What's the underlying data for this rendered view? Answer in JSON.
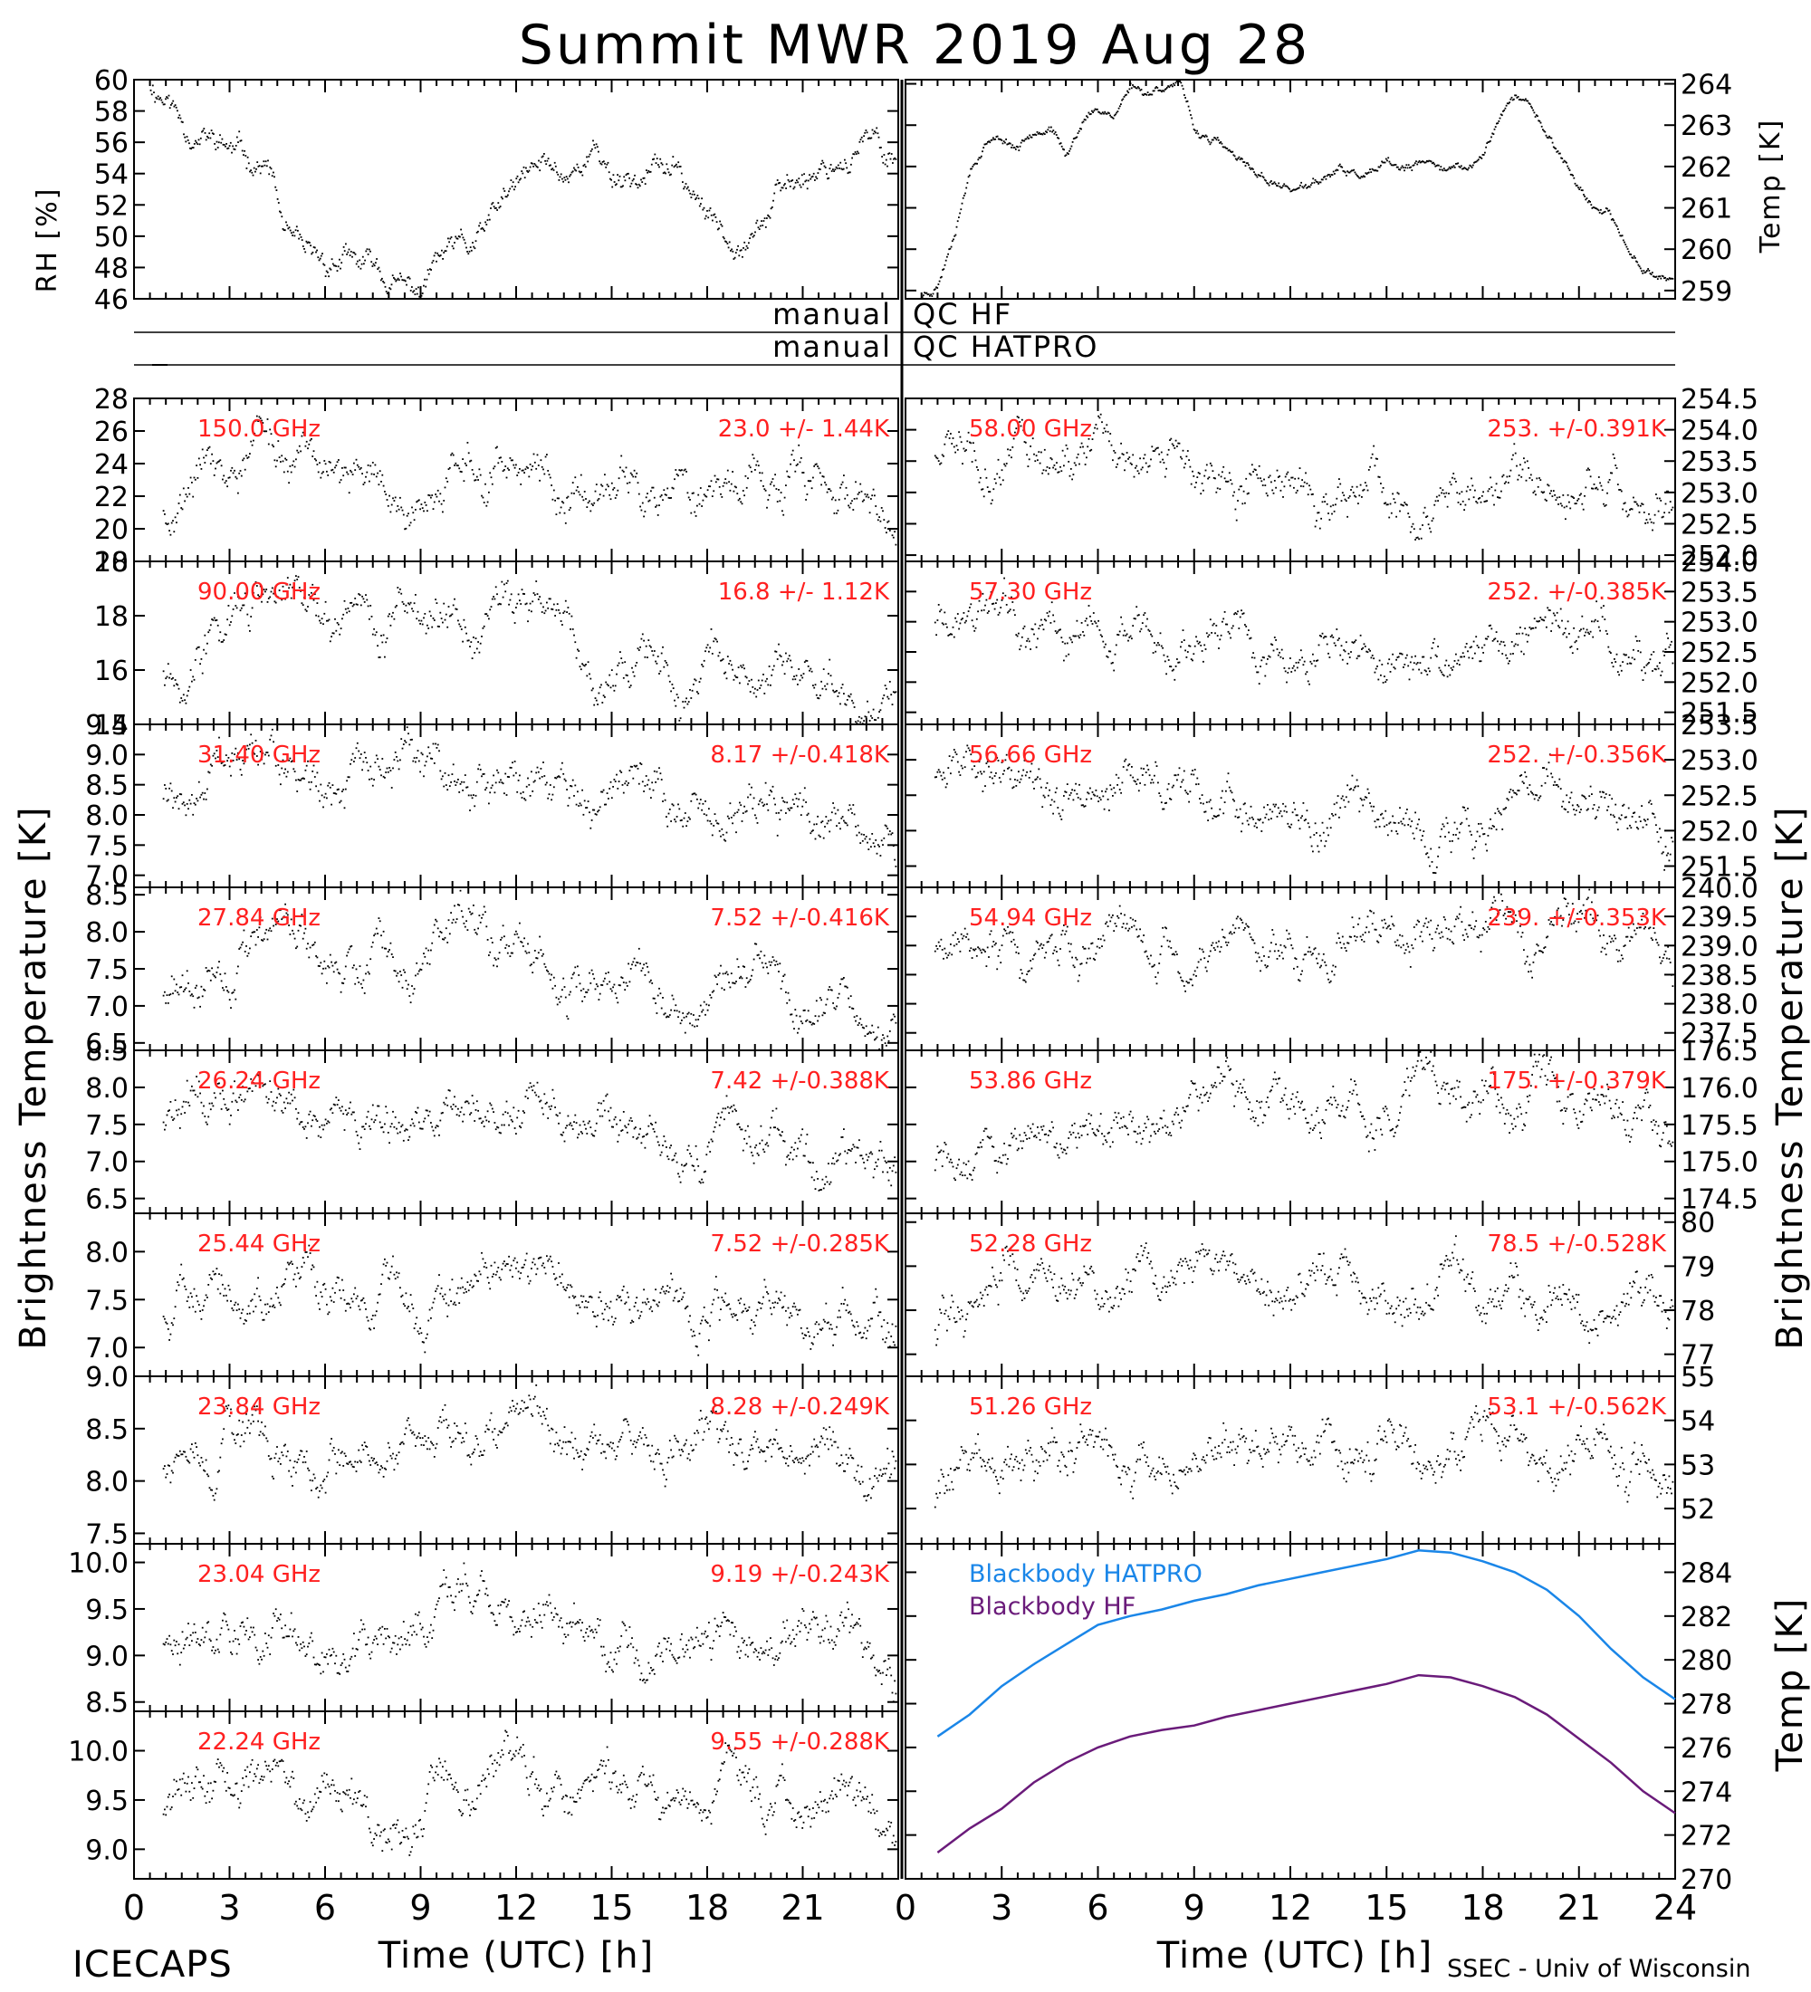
{
  "title": "Summit MWR 2019 Aug 28",
  "footer": {
    "left_label": "ICECAPS",
    "xlabel_left": "Time (UTC) [h]",
    "xlabel_right": "Time (UTC) [h]",
    "credit": "SSEC - Univ of Wisconsin"
  },
  "qc": {
    "line1_left": "manual",
    "line1_right": "QC HF",
    "line2_left": "manual",
    "line2_right": "QC HATPRO"
  },
  "axis_labels": {
    "rh": "RH [%]",
    "temp_top": "Temp [K]",
    "bt_left": "Brightness Temperature [K]",
    "bt_right": "Brightness Temperature [K]",
    "temp_bottom": "Temp [K]"
  },
  "colors": {
    "trace": "#000000",
    "stats_text": "#ff2020",
    "blackbody_hatpro": "#1a86e8",
    "blackbody_hf": "#6a1b7a"
  },
  "chart_data": {
    "type": "scatter",
    "x_ticks": [
      "0",
      "3",
      "6",
      "9",
      "12",
      "15",
      "18",
      "21"
    ],
    "x_ticks_right": [
      "0",
      "3",
      "6",
      "9",
      "12",
      "15",
      "18",
      "21",
      "24"
    ],
    "xlim": [
      0,
      24
    ],
    "top_panels": [
      {
        "id": "rh",
        "ylim": [
          46,
          60
        ],
        "yticks": [
          "46",
          "48",
          "50",
          "52",
          "54",
          "56",
          "58",
          "60"
        ],
        "series": [
          {
            "x": [
              0.5,
              1,
              1.5,
              2,
              2.5,
              3,
              3.5,
              4,
              4.3,
              4.6,
              5,
              5.5,
              6,
              6.5,
              7,
              7.5,
              8,
              8.5,
              9,
              9.5,
              10,
              10.5,
              11,
              11.5,
              12,
              12.5,
              13,
              13.5,
              14,
              14.5,
              15,
              15.5,
              16,
              16.5,
              17,
              17.5,
              18,
              18.5,
              19,
              19.5,
              20,
              20.5,
              21,
              21.5,
              22,
              22.5,
              23,
              23.5,
              24
            ],
            "y": [
              59.7,
              59,
              57.5,
              56.5,
              56,
              55.5,
              55,
              54.8,
              54,
              51,
              49,
              48,
              48,
              48.5,
              48,
              48,
              47,
              46.5,
              46.5,
              48.5,
              49,
              49,
              50,
              52,
              53,
              54,
              54.5,
              54,
              55,
              55.5,
              54,
              54,
              54,
              54.5,
              54,
              53,
              51,
              50.5,
              50.5,
              51,
              52,
              53,
              54,
              54.5,
              55,
              55.5,
              56,
              55.5,
              55
            ]
          }
        ]
      },
      {
        "id": "temp",
        "ylim": [
          258.8,
          264.1
        ],
        "yticks": [
          "259",
          "260",
          "261",
          "262",
          "263",
          "264"
        ],
        "series": [
          {
            "x": [
              0.5,
              1,
              1.5,
              2,
              2.5,
              3,
              3.5,
              4,
              4.5,
              5,
              5.5,
              6,
              6.5,
              7,
              7.5,
              8,
              8.5,
              9,
              9.5,
              10,
              10.5,
              11,
              11.5,
              12,
              12.5,
              13,
              13.5,
              14,
              14.5,
              15,
              15.5,
              16,
              16.5,
              17,
              17.5,
              18,
              18.5,
              19,
              19.5,
              20,
              20.5,
              21,
              21.5,
              22,
              22.5,
              23,
              23.5,
              24
            ],
            "y": [
              258.9,
              259.2,
              260.5,
              262,
              262.7,
              262.7,
              262.5,
              263,
              263,
              262.2,
              263.2,
              263.4,
              263.3,
              264,
              263.8,
              264,
              264.1,
              262.8,
              262.7,
              262.4,
              262,
              261.8,
              261.6,
              261.5,
              261.5,
              261.7,
              261.9,
              261.8,
              261.8,
              262,
              261.9,
              262,
              262.1,
              262,
              261.9,
              262.3,
              263.3,
              263.7,
              263.5,
              262.8,
              262.2,
              261.5,
              261,
              260.7,
              260,
              259.6,
              259.4,
              259.3
            ]
          }
        ]
      }
    ],
    "left_channels": [
      {
        "freq_label": "150.0 GHz",
        "stats_label": "23.0 +/-  1.44K",
        "ylim": [
          18,
          28
        ],
        "yticks": [
          "18",
          "20",
          "22",
          "24",
          "26",
          "28"
        ],
        "x": [
          0,
          2,
          4,
          6,
          8,
          10,
          12,
          14,
          16,
          18,
          20,
          22,
          24
        ],
        "y": [
          20.5,
          23,
          24,
          23,
          23.5,
          24,
          24.5,
          23.5,
          23,
          22.5,
          22.5,
          22,
          20
        ]
      },
      {
        "freq_label": "90.00 GHz",
        "stats_label": "16.8 +/-  1.12K",
        "ylim": [
          14,
          20
        ],
        "yticks": [
          "14",
          "16",
          "18",
          "20"
        ],
        "x": [
          0,
          2,
          4,
          6,
          8,
          10,
          12,
          14,
          16,
          18,
          20,
          22,
          24
        ],
        "y": [
          15,
          17,
          18.5,
          18,
          17.5,
          18,
          18,
          17,
          16,
          16,
          16.2,
          15.5,
          14.5
        ]
      },
      {
        "freq_label": "31.40 GHz",
        "stats_label": "8.17 +/-0.418K",
        "ylim": [
          6.8,
          9.5
        ],
        "yticks": [
          "7.0",
          "7.5",
          "8.0",
          "8.5",
          "9.0",
          "9.5"
        ],
        "x": [
          0,
          2,
          4,
          6,
          8,
          10,
          12,
          14,
          16,
          18,
          20,
          22,
          24
        ],
        "y": [
          8.2,
          8.5,
          8.7,
          8.6,
          8.4,
          8.6,
          8.6,
          8.2,
          8,
          7.9,
          8.2,
          7.8,
          7.2
        ]
      },
      {
        "freq_label": "27.84 GHz",
        "stats_label": "7.52 +/-0.416K",
        "ylim": [
          6.4,
          8.6
        ],
        "yticks": [
          "6.5",
          "7.0",
          "7.5",
          "8.0",
          "8.5"
        ],
        "x": [
          0,
          2,
          4,
          6,
          8,
          10,
          12,
          14,
          16,
          18,
          20,
          22,
          24
        ],
        "y": [
          7,
          7.6,
          7.9,
          7.8,
          7.7,
          7.9,
          8,
          7.6,
          7.3,
          7.2,
          7.2,
          7,
          6.7
        ]
      },
      {
        "freq_label": "26.24 GHz",
        "stats_label": "7.42 +/-0.388K",
        "ylim": [
          6.3,
          8.5
        ],
        "yticks": [
          "6.5",
          "7.0",
          "7.5",
          "8.0",
          "8.5"
        ],
        "x": [
          0,
          2,
          4,
          6,
          8,
          10,
          12,
          14,
          16,
          18,
          20,
          22,
          24
        ],
        "y": [
          7.3,
          7.8,
          7.8,
          7.6,
          7.5,
          7.6,
          7.8,
          7.4,
          7.2,
          7.2,
          7.3,
          7,
          6.8
        ]
      },
      {
        "freq_label": "25.44 GHz",
        "stats_label": "7.52 +/-0.285K",
        "ylim": [
          6.7,
          8.4
        ],
        "yticks": [
          "7.0",
          "7.5",
          "8.0"
        ],
        "x": [
          0,
          2,
          4,
          6,
          8,
          10,
          12,
          14,
          16,
          18,
          20,
          22,
          24
        ],
        "y": [
          7.2,
          7.6,
          7.6,
          7.6,
          7.5,
          7.6,
          7.8,
          7.5,
          7.4,
          7.4,
          7.5,
          7.3,
          7.2
        ]
      },
      {
        "freq_label": "23.84 GHz",
        "stats_label": "8.28 +/-0.249K",
        "ylim": [
          7.4,
          9.0
        ],
        "yticks": [
          "7.5",
          "8.0",
          "8.5",
          "9.0"
        ],
        "x": [
          0,
          2,
          4,
          6,
          8,
          10,
          12,
          14,
          16,
          18,
          20,
          22,
          24
        ],
        "y": [
          8,
          8.5,
          8.4,
          8.3,
          8.2,
          8.4,
          8.5,
          8.3,
          8.2,
          8.3,
          8.3,
          8.2,
          7.9
        ]
      },
      {
        "freq_label": "23.04 GHz",
        "stats_label": "9.19 +/-0.243K",
        "ylim": [
          8.4,
          10.2
        ],
        "yticks": [
          "8.5",
          "9.0",
          "9.5",
          "10.0"
        ],
        "x": [
          0,
          2,
          4,
          6,
          8,
          10,
          12,
          14,
          16,
          18,
          20,
          22,
          24
        ],
        "y": [
          9,
          9.3,
          9.3,
          9.2,
          9.1,
          9.3,
          9.5,
          9.2,
          9.1,
          9.2,
          9.2,
          9.1,
          8.9
        ]
      },
      {
        "freq_label": "22.24 GHz",
        "stats_label": "9.55 +/-0.288K",
        "ylim": [
          8.7,
          10.4
        ],
        "yticks": [
          "9.0",
          "9.5",
          "10.0"
        ],
        "x": [
          0,
          2,
          4,
          6,
          8,
          10,
          12,
          14,
          16,
          18,
          20,
          22,
          24
        ],
        "y": [
          9.2,
          9.7,
          9.6,
          9.5,
          9.4,
          9.6,
          9.8,
          9.5,
          9.5,
          9.5,
          9.6,
          9.5,
          9.3
        ]
      }
    ],
    "right_channels": [
      {
        "freq_label": "58.00 GHz",
        "stats_label": "253. +/-0.391K",
        "ylim": [
          251.9,
          254.5
        ],
        "yticks": [
          "252.0",
          "252.5",
          "253.0",
          "253.5",
          "254.0",
          "254.5"
        ],
        "x": [
          0,
          2,
          4,
          6,
          8,
          10,
          12,
          14,
          16,
          18,
          20,
          22,
          24
        ],
        "y": [
          253.7,
          253.6,
          253.5,
          253.5,
          253.4,
          252.9,
          252.9,
          252.9,
          252.8,
          252.9,
          253.3,
          253.2,
          252.6
        ]
      },
      {
        "freq_label": "57.30 GHz",
        "stats_label": "252. +/-0.385K",
        "ylim": [
          251.3,
          254.0
        ],
        "yticks": [
          "251.5",
          "252.0",
          "252.5",
          "253.0",
          "253.5",
          "254.0"
        ],
        "x": [
          0,
          2,
          4,
          6,
          8,
          10,
          12,
          14,
          16,
          18,
          20,
          22,
          24
        ],
        "y": [
          253.2,
          253.1,
          253,
          253,
          252.9,
          252.5,
          252.5,
          252.6,
          252.5,
          252.6,
          252.9,
          252.8,
          252.3
        ]
      },
      {
        "freq_label": "56.66 GHz",
        "stats_label": "252. +/-0.356K",
        "ylim": [
          251.2,
          253.5
        ],
        "yticks": [
          "251.5",
          "252.0",
          "252.5",
          "253.0",
          "253.5"
        ],
        "x": [
          0,
          2,
          4,
          6,
          8,
          10,
          12,
          14,
          16,
          18,
          20,
          22,
          24
        ],
        "y": [
          252.8,
          252.7,
          252.6,
          252.5,
          252.5,
          252.1,
          252.2,
          252.3,
          252.2,
          252.2,
          252.5,
          252.4,
          252
        ]
      },
      {
        "freq_label": "54.94 GHz",
        "stats_label": "239. +/-0.353K",
        "ylim": [
          237.2,
          240.0
        ],
        "yticks": [
          "237.5",
          "238.0",
          "238.5",
          "239.0",
          "239.5",
          "240.0"
        ],
        "x": [
          0,
          2,
          4,
          6,
          8,
          10,
          12,
          14,
          16,
          18,
          20,
          22,
          24
        ],
        "y": [
          239,
          239,
          239,
          238.9,
          238.9,
          238.9,
          238.9,
          239,
          239,
          239.1,
          239.2,
          239.1,
          238.8
        ]
      },
      {
        "freq_label": "53.86 GHz",
        "stats_label": "175. +/-0.379K",
        "ylim": [
          174.3,
          176.5
        ],
        "yticks": [
          "174.5",
          "175.0",
          "175.5",
          "176.0",
          "176.5"
        ],
        "x": [
          0,
          2,
          4,
          6,
          8,
          10,
          12,
          14,
          16,
          18,
          20,
          22,
          24
        ],
        "y": [
          174.9,
          175.2,
          175.4,
          175.5,
          175.5,
          175.6,
          175.6,
          175.7,
          175.7,
          175.8,
          175.8,
          175.7,
          175.4
        ]
      },
      {
        "freq_label": "52.28 GHz",
        "stats_label": "78.5 +/-0.528K",
        "ylim": [
          76.5,
          80.2
        ],
        "yticks": [
          "77",
          "78",
          "79",
          "80"
        ],
        "x": [
          0,
          2,
          4,
          6,
          8,
          10,
          12,
          14,
          16,
          18,
          20,
          22,
          24
        ],
        "y": [
          77,
          78.3,
          78.8,
          78.8,
          78.7,
          78.8,
          78.9,
          78.8,
          78.8,
          78.7,
          78.7,
          78.4,
          77.8
        ]
      },
      {
        "freq_label": "51.26 GHz",
        "stats_label": "53.1 +/-0.562K",
        "ylim": [
          51.2,
          55.0
        ],
        "yticks": [
          "52",
          "53",
          "54",
          "55"
        ],
        "x": [
          0,
          2,
          4,
          6,
          8,
          10,
          12,
          14,
          16,
          18,
          20,
          22,
          24
        ],
        "y": [
          51.7,
          52.8,
          53.3,
          53.3,
          53.2,
          53.4,
          53.6,
          53.5,
          53.3,
          53.3,
          53.3,
          53.1,
          52.5
        ]
      }
    ],
    "blackbody": {
      "ylim": [
        270,
        285.3
      ],
      "yticks": [
        "270",
        "272",
        "274",
        "276",
        "278",
        "280",
        "282",
        "284"
      ],
      "series": [
        {
          "name": "Blackbody HATPRO",
          "color": "#1a86e8",
          "x": [
            1,
            2,
            3,
            4,
            5,
            6,
            7,
            8,
            9,
            10,
            11,
            12,
            13,
            14,
            15,
            16,
            17,
            18,
            19,
            20,
            21,
            22,
            23,
            24
          ],
          "y": [
            276.5,
            277.5,
            278.8,
            279.8,
            280.7,
            281.6,
            282,
            282.3,
            282.7,
            283,
            283.4,
            283.7,
            284,
            284.3,
            284.6,
            285,
            284.9,
            284.5,
            284,
            283.2,
            282,
            280.5,
            279.2,
            278.2
          ]
        },
        {
          "name": "Blackbody HF",
          "color": "#6a1b7a",
          "x": [
            1,
            2,
            3,
            4,
            5,
            6,
            7,
            8,
            9,
            10,
            11,
            12,
            13,
            14,
            15,
            16,
            17,
            18,
            19,
            20,
            21,
            22,
            23,
            24
          ],
          "y": [
            271.2,
            272.3,
            273.2,
            274.4,
            275.3,
            276,
            276.5,
            276.8,
            277,
            277.4,
            277.7,
            278,
            278.3,
            278.6,
            278.9,
            279.3,
            279.2,
            278.8,
            278.3,
            277.5,
            276.4,
            275.3,
            274,
            273
          ]
        }
      ]
    }
  }
}
